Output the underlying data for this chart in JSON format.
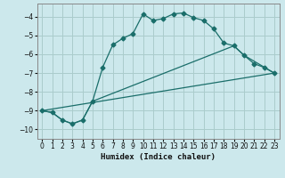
{
  "xlabel": "Humidex (Indice chaleur)",
  "background_color": "#cce8ec",
  "grid_color": "#aacccc",
  "line_color": "#1a6e6a",
  "xlim": [
    -0.5,
    23.5
  ],
  "ylim": [
    -10.5,
    -3.3
  ],
  "yticks": [
    -10,
    -9,
    -8,
    -7,
    -6,
    -5,
    -4
  ],
  "xticks": [
    0,
    1,
    2,
    3,
    4,
    5,
    6,
    7,
    8,
    9,
    10,
    11,
    12,
    13,
    14,
    15,
    16,
    17,
    18,
    19,
    20,
    21,
    22,
    23
  ],
  "curve1_x": [
    0,
    1,
    2,
    3,
    4,
    5,
    6,
    7,
    8,
    9,
    10,
    11,
    12,
    13,
    14,
    15,
    16,
    17,
    18,
    19,
    20,
    21,
    22,
    23
  ],
  "curve1_y": [
    -9.0,
    -9.1,
    -9.5,
    -9.7,
    -9.5,
    -8.5,
    -6.7,
    -5.5,
    -5.15,
    -4.9,
    -3.85,
    -4.2,
    -4.1,
    -3.85,
    -3.8,
    -4.05,
    -4.2,
    -4.65,
    -5.4,
    -5.55,
    -6.05,
    -6.5,
    -6.7,
    -7.0
  ],
  "curve2_x": [
    0,
    1,
    2,
    3,
    4,
    5,
    19,
    20,
    23
  ],
  "curve2_y": [
    -9.0,
    -9.1,
    -9.5,
    -9.7,
    -9.5,
    -8.5,
    -5.55,
    -6.05,
    -7.0
  ]
}
